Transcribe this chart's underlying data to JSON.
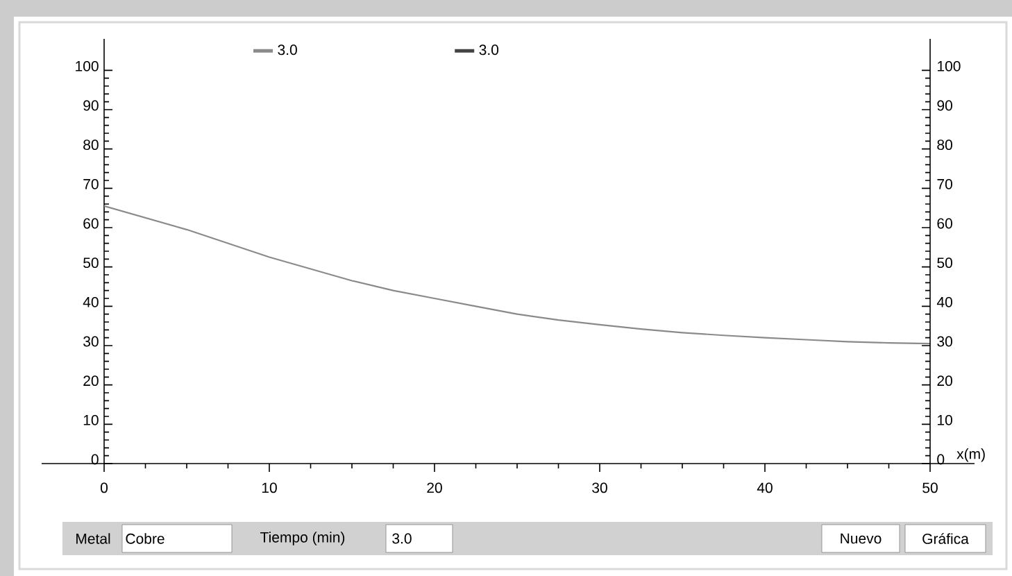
{
  "chart_data": {
    "type": "line",
    "xlabel": "x(m)",
    "x": [
      0,
      2.5,
      5,
      7.5,
      10,
      12.5,
      15,
      17.5,
      20,
      22.5,
      25,
      27.5,
      30,
      32.5,
      35,
      37.5,
      40,
      42.5,
      45,
      47.5,
      50
    ],
    "series": [
      {
        "name": "3.0",
        "color": "#8a8a8a",
        "values": [
          65.5,
          62.5,
          59.5,
          56,
          52.5,
          49.5,
          46.5,
          44,
          42,
          40,
          38,
          36.5,
          35.3,
          34.2,
          33.3,
          32.6,
          32,
          31.5,
          31,
          30.7,
          30.5
        ]
      },
      {
        "name": "3.0",
        "color": "#444444",
        "values": [
          null,
          null,
          null,
          null,
          null,
          null,
          null,
          null,
          null,
          null,
          null,
          null,
          null,
          null,
          null,
          null,
          null,
          null,
          null,
          null,
          null
        ]
      }
    ],
    "xlim": [
      0,
      50
    ],
    "xticks": [
      0,
      10,
      20,
      30,
      40,
      50
    ],
    "ylim": [
      0,
      108
    ],
    "yticks": [
      0,
      10,
      20,
      30,
      40,
      50,
      60,
      70,
      80,
      90,
      100
    ],
    "y2lim": [
      0,
      108
    ],
    "y2ticks": [
      0,
      10,
      20,
      30,
      40,
      50,
      60,
      70,
      80,
      90,
      100
    ],
    "legend": "top",
    "annotations": [
      "Metal",
      "Cobre",
      "Tiempo (min)",
      "3.0",
      "Nuevo",
      "Gráfica"
    ]
  }
}
